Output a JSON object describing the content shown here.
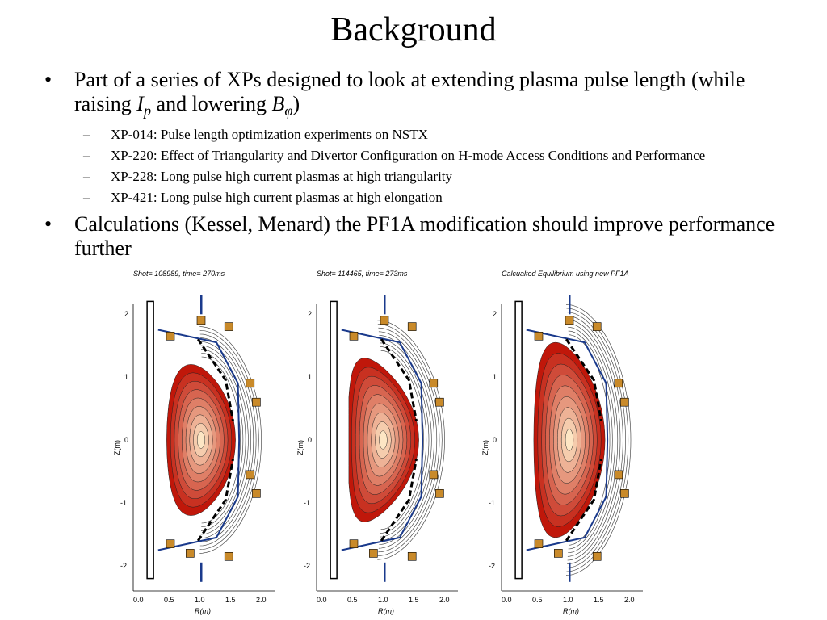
{
  "slide": {
    "title": "Background"
  },
  "bullets": {
    "b1": {
      "text_pre": "Part of a series of XPs designed to look at extending plasma pulse length (while raising ",
      "ip_main": "I",
      "ip_sub": "p",
      "text_mid": " and lowering ",
      "b_main": "B",
      "b_sub": "φ",
      "text_post": ")"
    },
    "sub": [
      "XP-014: Pulse length optimization experiments  on NSTX",
      "XP-220: Effect of Triangularity and Divertor Configuration on H-mode Access Conditions and Performance",
      "XP-228: Long pulse high current plasmas at high triangularity",
      "XP-421: Long pulse high current plasmas at high elongation"
    ],
    "b2": "Calculations (Kessel, Menard) the PF1A modification should improve performance further",
    "bullet_glyph": "•",
    "dash_glyph": "–"
  },
  "figures": {
    "panels": [
      {
        "title": "Shot= 108989, time= 270ms"
      },
      {
        "title": "Shot= 114465, time= 273ms"
      },
      {
        "title": "Calcualted Equilibrium using new PF1A"
      }
    ],
    "y_ticks": [
      "2",
      "1",
      "0",
      "-1",
      "-2"
    ],
    "x_ticks": [
      "0.0",
      "0.5",
      "1.0",
      "1.5",
      "2.0"
    ],
    "ylabel": "Z(m)",
    "xlabel": "R(m)",
    "colors": {
      "contour_outer": "#c0170a",
      "contour_inner": "#fde6c4",
      "vessel": "#1a3a8c",
      "coil": "#c98a2a"
    }
  }
}
